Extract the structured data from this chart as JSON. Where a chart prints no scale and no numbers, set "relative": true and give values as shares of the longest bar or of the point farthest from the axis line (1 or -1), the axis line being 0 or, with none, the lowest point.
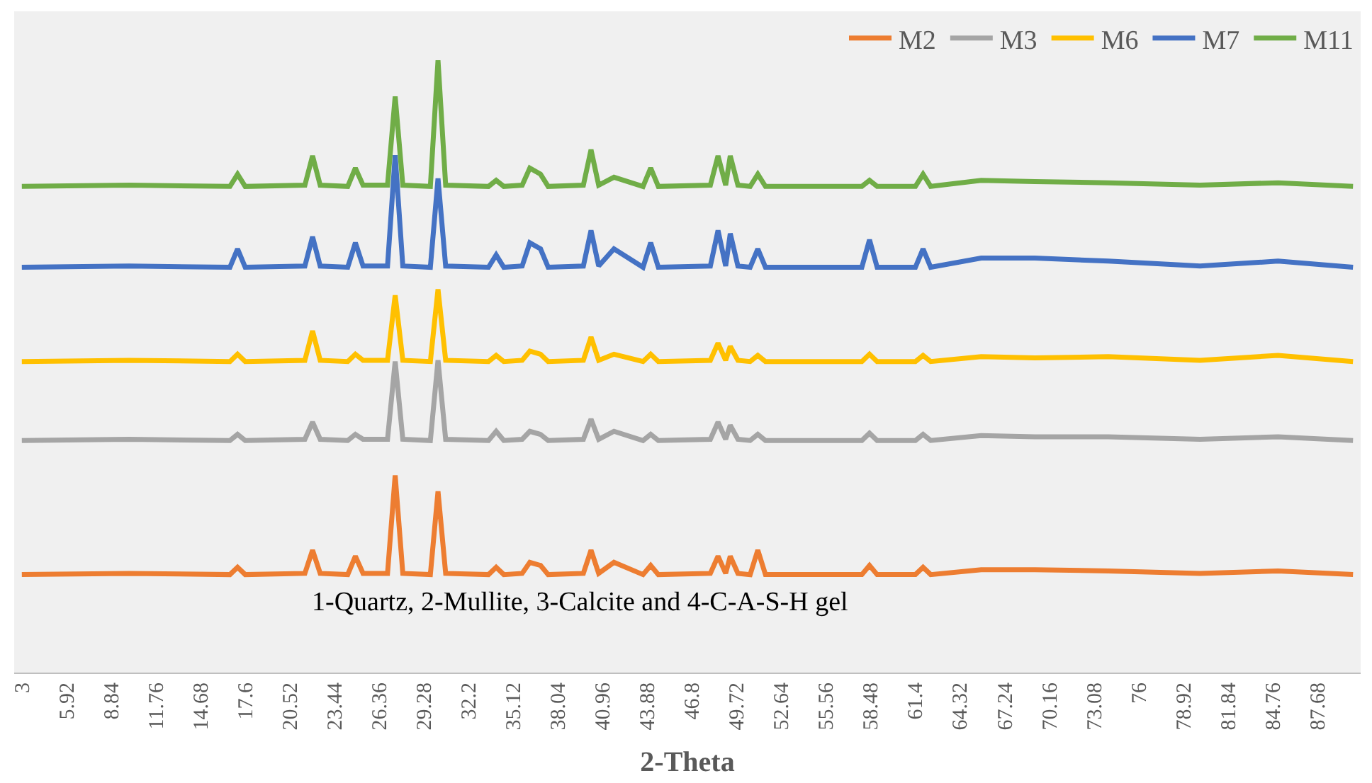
{
  "chart_data": {
    "type": "line",
    "relative": true,
    "xlabel": "2-Theta",
    "legend": "top right",
    "marker": "none",
    "line_style": "solid",
    "xlim": [
      2.5,
      90.5
    ],
    "xticks": [
      3,
      5.92,
      8.84,
      11.76,
      14.68,
      17.6,
      20.52,
      23.44,
      26.36,
      29.28,
      32.2,
      35.12,
      38.04,
      40.96,
      43.88,
      46.8,
      49.72,
      52.64,
      55.56,
      58.48,
      61.4,
      64.32,
      67.24,
      70.16,
      73.08,
      76,
      78.92,
      81.84,
      84.76,
      87.68
    ],
    "x": [
      3,
      10,
      16.6,
      17.1,
      17.6,
      21.5,
      22.0,
      22.5,
      24.3,
      24.8,
      25.3,
      26.9,
      27.4,
      27.9,
      29.7,
      30.2,
      30.7,
      33.5,
      34.0,
      34.5,
      35.7,
      36.2,
      36.9,
      37.4,
      39.7,
      40.2,
      40.7,
      41.7,
      43.6,
      44.1,
      44.6,
      48.0,
      48.5,
      49.0,
      49.3,
      49.8,
      50.6,
      51.1,
      51.6,
      57.9,
      58.4,
      58.9,
      61.4,
      61.9,
      62.4,
      65.7,
      69.2,
      74.0,
      80,
      85.1,
      90
    ],
    "series": [
      {
        "name": "M2",
        "color": "#ed7d31",
        "values": [
          0.16,
          0.162,
          0.16,
          0.172,
          0.16,
          0.162,
          0.2,
          0.162,
          0.16,
          0.19,
          0.162,
          0.162,
          0.322,
          0.162,
          0.16,
          0.296,
          0.162,
          0.16,
          0.172,
          0.16,
          0.162,
          0.18,
          0.175,
          0.16,
          0.162,
          0.2,
          0.162,
          0.18,
          0.16,
          0.175,
          0.16,
          0.162,
          0.19,
          0.162,
          0.19,
          0.162,
          0.16,
          0.2,
          0.16,
          0.16,
          0.175,
          0.16,
          0.16,
          0.172,
          0.16,
          0.168,
          0.168,
          0.166,
          0.162,
          0.166,
          0.16
        ]
      },
      {
        "name": "M3",
        "color": "#a5a5a5",
        "values": [
          0.379,
          0.381,
          0.379,
          0.389,
          0.379,
          0.381,
          0.409,
          0.381,
          0.379,
          0.389,
          0.381,
          0.381,
          0.508,
          0.381,
          0.379,
          0.51,
          0.381,
          0.379,
          0.394,
          0.379,
          0.381,
          0.394,
          0.389,
          0.379,
          0.381,
          0.414,
          0.381,
          0.394,
          0.379,
          0.389,
          0.379,
          0.381,
          0.409,
          0.381,
          0.404,
          0.381,
          0.379,
          0.389,
          0.379,
          0.379,
          0.391,
          0.379,
          0.379,
          0.389,
          0.379,
          0.387,
          0.385,
          0.385,
          0.381,
          0.385,
          0.379
        ]
      },
      {
        "name": "M6",
        "color": "#ffc000",
        "values": [
          0.508,
          0.51,
          0.508,
          0.52,
          0.508,
          0.51,
          0.558,
          0.51,
          0.508,
          0.52,
          0.51,
          0.51,
          0.616,
          0.51,
          0.508,
          0.626,
          0.51,
          0.508,
          0.518,
          0.508,
          0.51,
          0.525,
          0.52,
          0.508,
          0.51,
          0.548,
          0.51,
          0.52,
          0.508,
          0.52,
          0.508,
          0.51,
          0.538,
          0.51,
          0.533,
          0.51,
          0.508,
          0.518,
          0.508,
          0.508,
          0.52,
          0.508,
          0.508,
          0.518,
          0.508,
          0.516,
          0.514,
          0.516,
          0.51,
          0.518,
          0.508
        ]
      },
      {
        "name": "M7",
        "color": "#4472c4",
        "values": [
          0.662,
          0.664,
          0.662,
          0.692,
          0.662,
          0.664,
          0.712,
          0.664,
          0.662,
          0.702,
          0.664,
          0.664,
          0.845,
          0.664,
          0.662,
          0.807,
          0.664,
          0.662,
          0.682,
          0.662,
          0.664,
          0.702,
          0.692,
          0.662,
          0.664,
          0.722,
          0.664,
          0.692,
          0.662,
          0.702,
          0.662,
          0.664,
          0.722,
          0.664,
          0.717,
          0.664,
          0.662,
          0.692,
          0.662,
          0.662,
          0.707,
          0.662,
          0.662,
          0.692,
          0.662,
          0.677,
          0.677,
          0.672,
          0.664,
          0.672,
          0.662
        ]
      },
      {
        "name": "M11",
        "color": "#70ad47",
        "values": [
          0.794,
          0.796,
          0.794,
          0.814,
          0.794,
          0.796,
          0.844,
          0.796,
          0.794,
          0.824,
          0.796,
          0.796,
          0.941,
          0.796,
          0.794,
          1.0,
          0.796,
          0.794,
          0.804,
          0.794,
          0.796,
          0.824,
          0.814,
          0.794,
          0.796,
          0.854,
          0.796,
          0.809,
          0.794,
          0.824,
          0.794,
          0.796,
          0.844,
          0.796,
          0.844,
          0.796,
          0.794,
          0.814,
          0.794,
          0.794,
          0.804,
          0.794,
          0.794,
          0.814,
          0.794,
          0.804,
          0.802,
          0.8,
          0.796,
          0.8,
          0.794
        ]
      }
    ],
    "annotations": [
      "1-Quartz, 2-Mullite, 3-Calcite and 4-C-A-S-H gel"
    ]
  }
}
